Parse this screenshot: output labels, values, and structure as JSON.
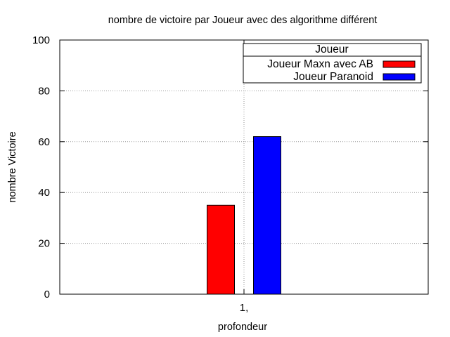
{
  "chart_data": {
    "type": "bar",
    "title": "nombre de victoire par Joueur avec des algorithme différent",
    "xlabel": "profondeur",
    "ylabel": "nombre Victoire",
    "categories": [
      "1,"
    ],
    "ylim": [
      0,
      100
    ],
    "yticks": [
      0,
      20,
      40,
      60,
      80,
      100
    ],
    "grid": true,
    "legend": {
      "title": "Joueur",
      "placement": "top-right"
    },
    "series": [
      {
        "name": "Joueur Maxn avec AB",
        "values": [
          35
        ],
        "color": "#ff0000"
      },
      {
        "name": "Joueur Paranoid",
        "values": [
          62
        ],
        "color": "#0000ff"
      }
    ]
  }
}
